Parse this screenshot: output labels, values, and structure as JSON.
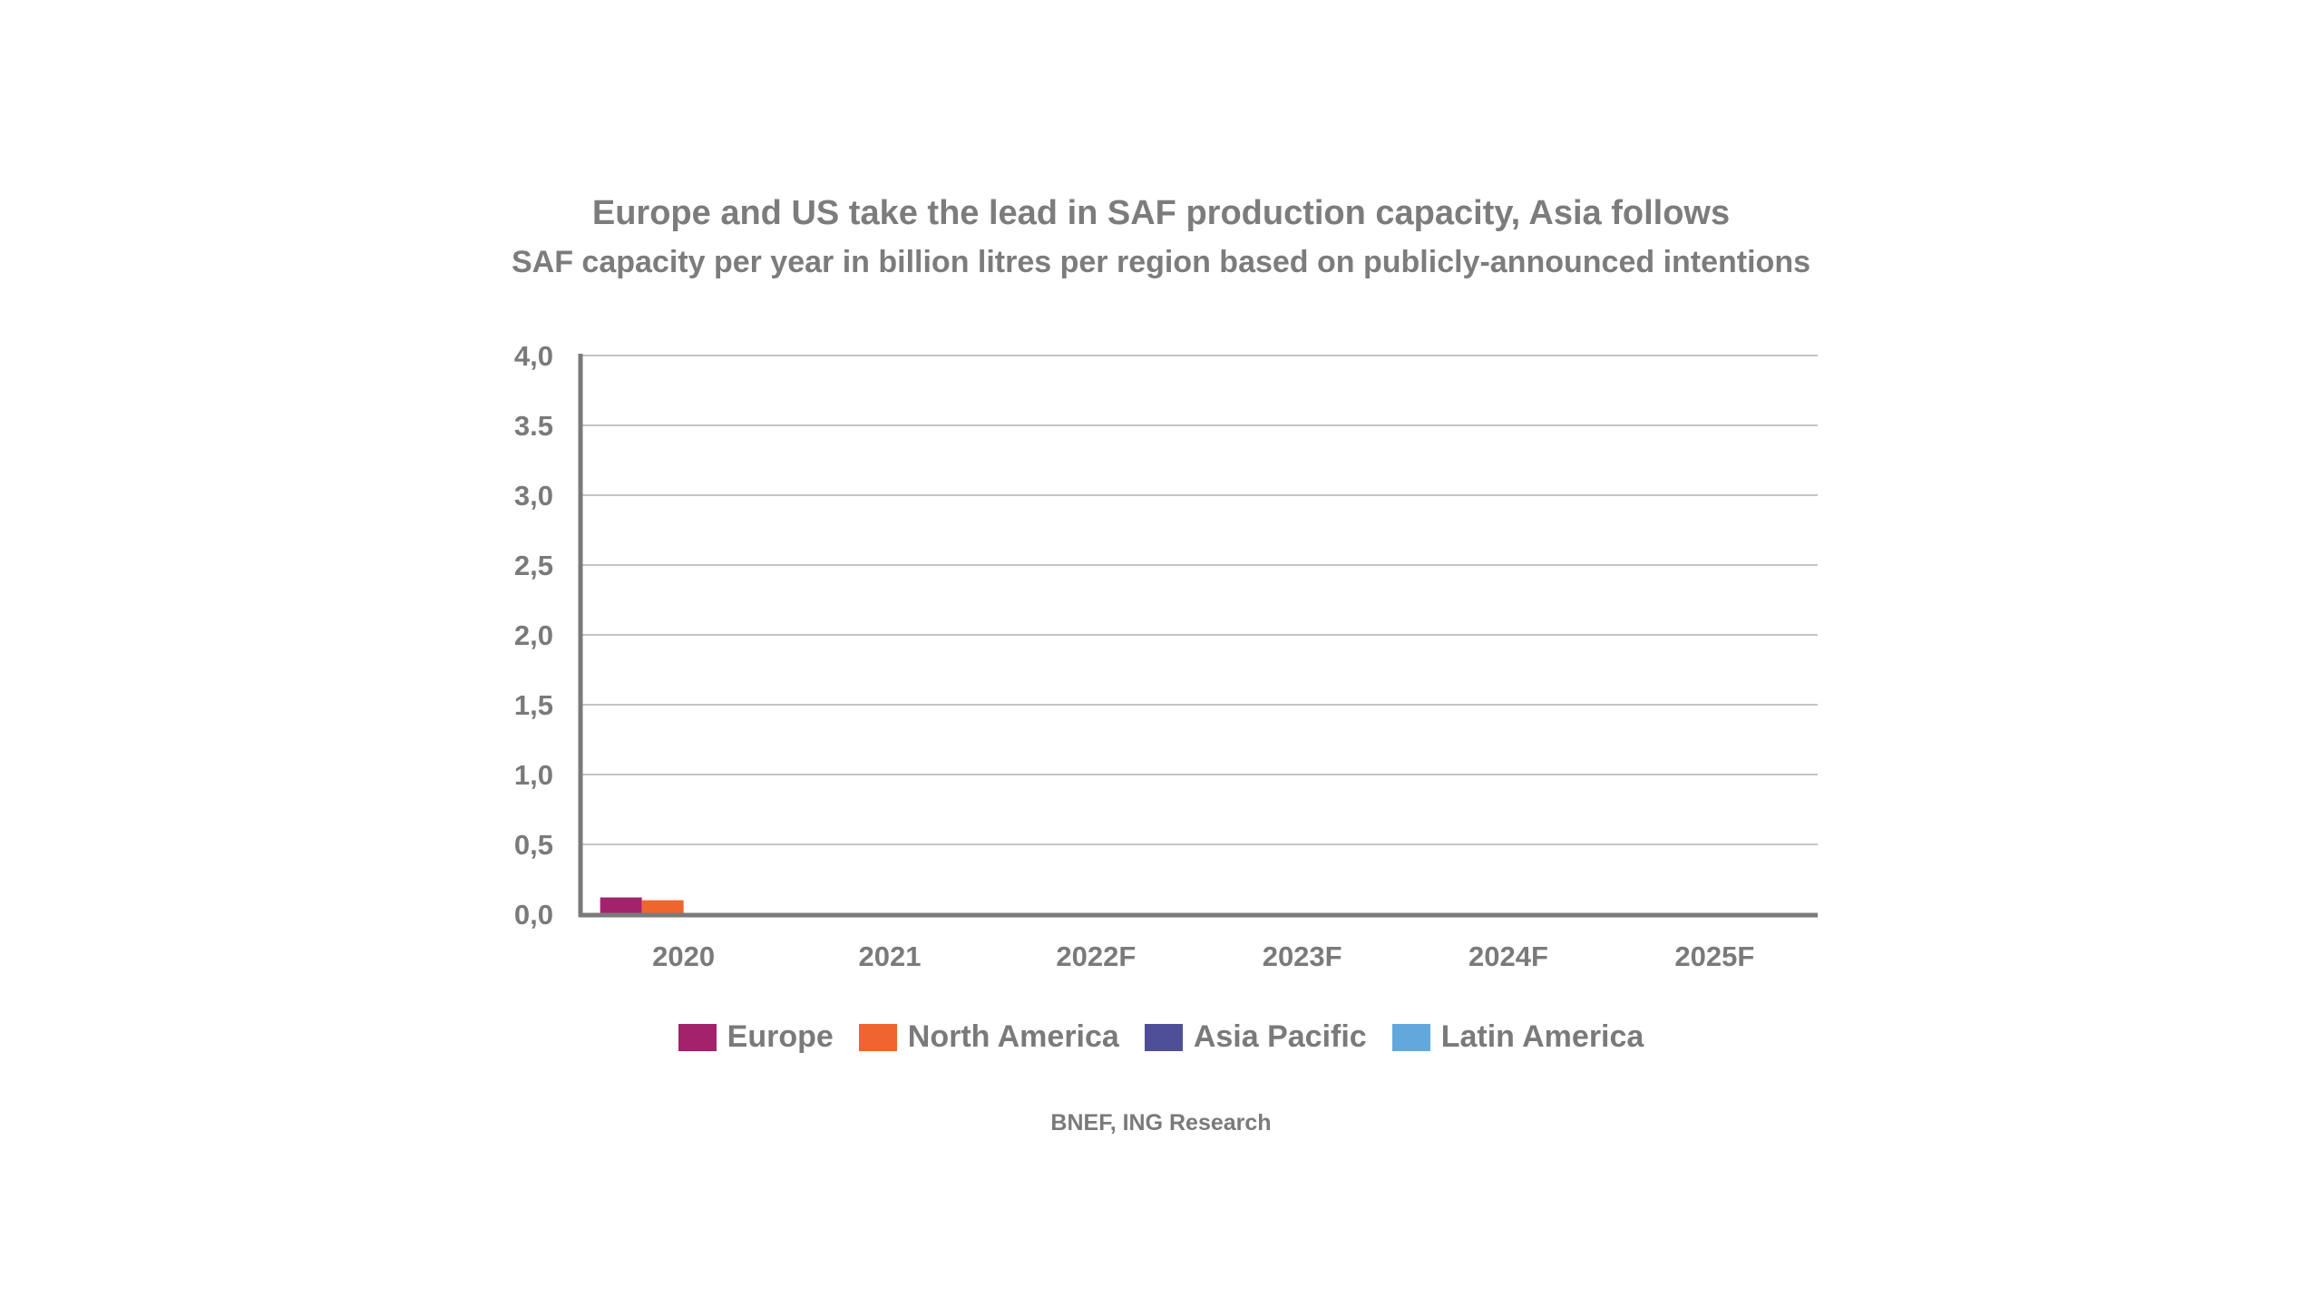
{
  "chart_data": {
    "type": "bar",
    "title": "Europe and US take the lead in SAF production capacity, Asia follows",
    "subtitle": "SAF capacity per year in billion litres per region based on publicly-announced intentions",
    "xlabel": "",
    "ylabel": "",
    "categories": [
      "2020",
      "2021",
      "2022F",
      "2023F",
      "2024F",
      "2025F"
    ],
    "y_ticks": [
      "0,0",
      "0,5",
      "1,0",
      "1,5",
      "2,0",
      "2,5",
      "3,0",
      "3.5",
      "4,0"
    ],
    "ylim": [
      0,
      4.0
    ],
    "grid": true,
    "legend_position": "bottom",
    "series": [
      {
        "name": "Europe",
        "color": "#a3226c",
        "values": [
          0.12,
          0,
          0,
          0,
          0,
          0
        ]
      },
      {
        "name": "North America",
        "color": "#f0652f",
        "values": [
          0.1,
          0,
          0,
          0,
          0,
          0
        ]
      },
      {
        "name": "Asia Pacific",
        "color": "#4f4f99",
        "values": [
          0,
          0,
          0,
          0,
          0,
          0
        ]
      },
      {
        "name": "Latin America",
        "color": "#63a8dc",
        "values": [
          0,
          0,
          0,
          0,
          0,
          0
        ]
      }
    ],
    "source": "BNEF, ING Research"
  }
}
